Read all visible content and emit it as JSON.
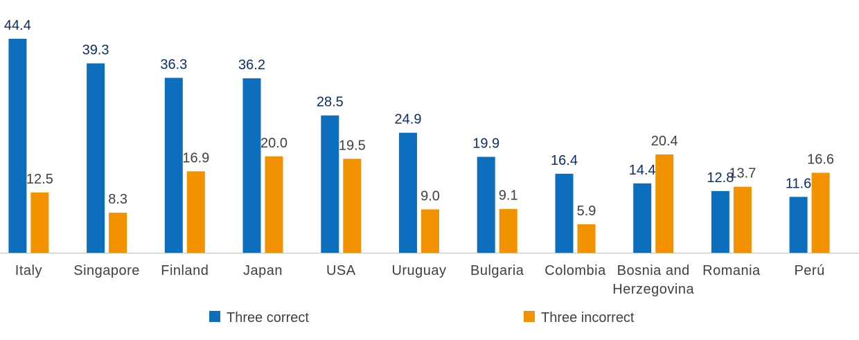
{
  "chart_data": {
    "type": "bar",
    "categories": [
      [
        "Italy"
      ],
      [
        "Singapore"
      ],
      [
        "Finland"
      ],
      [
        "Japan"
      ],
      [
        "USA"
      ],
      [
        "Uruguay"
      ],
      [
        "Bulgaria"
      ],
      [
        "Colombia"
      ],
      [
        "Bosnia and",
        "Herzegovina"
      ],
      [
        "Romania"
      ],
      [
        "Perú"
      ]
    ],
    "series": [
      {
        "name": "Three correct",
        "color": "#0D6EBD",
        "label_color": "#0B2E6B",
        "values": [
          44.4,
          39.3,
          36.3,
          36.2,
          28.5,
          24.9,
          19.9,
          16.4,
          14.4,
          12.8,
          11.6
        ]
      },
      {
        "name": "Three incorrect",
        "color": "#F39200",
        "label_color": "#404040",
        "values": [
          12.5,
          8.3,
          16.9,
          20.0,
          19.5,
          9.0,
          9.1,
          5.9,
          20.4,
          13.7,
          16.6
        ]
      }
    ],
    "ylim": [
      0,
      44.4
    ],
    "grid": false,
    "legend_position": "bottom"
  }
}
